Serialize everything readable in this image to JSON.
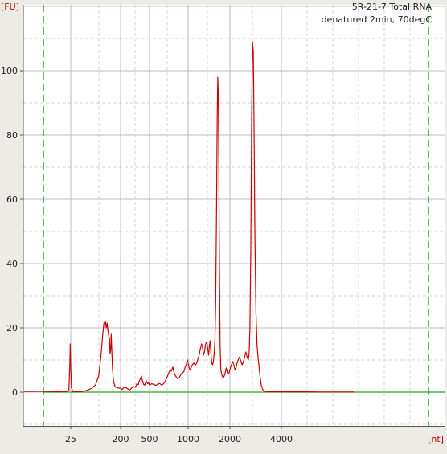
{
  "chart_data": {
    "type": "line",
    "title": "5R-21-7 Total RNA",
    "subtitle": "denatured 2min, 70degC",
    "xlabel": "[nt]",
    "ylabel": "[FU]",
    "x_tick_labels": [
      "25",
      "200",
      "500",
      "1000",
      "2000",
      "4000"
    ],
    "x_ticks_nt": [
      25,
      200,
      500,
      1000,
      2000,
      4000
    ],
    "y_ticks": [
      0,
      20,
      40,
      60,
      80,
      100
    ],
    "ylim": [
      -11,
      120
    ],
    "x_axis_note": "nonlinear sizing axis; curve x in nt, mapped through tick labels (25 nt marker; lower marker region left of 25)",
    "grid": true,
    "marker_lines": {
      "color": "#1f9e1f",
      "style": "dashed"
    },
    "baseline_color": "#2aa02a",
    "series": [
      {
        "color": "#cc0000",
        "points": [
          [
            3,
            0.2
          ],
          [
            8,
            0.3
          ],
          [
            14,
            0.1
          ],
          [
            18,
            0.2
          ],
          [
            21,
            0.2
          ],
          [
            23,
            0.5
          ],
          [
            24,
            9
          ],
          [
            24.5,
            15
          ],
          [
            25,
            8
          ],
          [
            25.8,
            1.5
          ],
          [
            27,
            0.2
          ],
          [
            32,
            0.1
          ],
          [
            40,
            0.2
          ],
          [
            50,
            0.6
          ],
          [
            60,
            1.2
          ],
          [
            70,
            2.2
          ],
          [
            80,
            5
          ],
          [
            88,
            11
          ],
          [
            95,
            18
          ],
          [
            100,
            21.5
          ],
          [
            106,
            22
          ],
          [
            110,
            20
          ],
          [
            114,
            21.5
          ],
          [
            118,
            19
          ],
          [
            122,
            17.5
          ],
          [
            126,
            16.5
          ],
          [
            129,
            12
          ],
          [
            132,
            13
          ],
          [
            135,
            18
          ],
          [
            138,
            14
          ],
          [
            142,
            8
          ],
          [
            146,
            5
          ],
          [
            150,
            3
          ],
          [
            160,
            1.6
          ],
          [
            175,
            1.4
          ],
          [
            190,
            1.2
          ],
          [
            200,
            1.3
          ],
          [
            210,
            0.8
          ],
          [
            225,
            1.6
          ],
          [
            240,
            1.3
          ],
          [
            255,
            0.9
          ],
          [
            270,
            0.7
          ],
          [
            285,
            1.3
          ],
          [
            300,
            1.8
          ],
          [
            318,
            1.5
          ],
          [
            335,
            2.6
          ],
          [
            350,
            2.3
          ],
          [
            362,
            3.5
          ],
          [
            375,
            4.2
          ],
          [
            388,
            5
          ],
          [
            400,
            3.5
          ],
          [
            415,
            2.4
          ],
          [
            430,
            2.2
          ],
          [
            450,
            3.5
          ],
          [
            470,
            2.6
          ],
          [
            485,
            3
          ],
          [
            500,
            2.2
          ],
          [
            520,
            2.6
          ],
          [
            540,
            2.4
          ],
          [
            560,
            2.1
          ],
          [
            580,
            2.5
          ],
          [
            600,
            2.7
          ],
          [
            620,
            2.2
          ],
          [
            640,
            2.5
          ],
          [
            660,
            3.2
          ],
          [
            680,
            4.4
          ],
          [
            700,
            5.5
          ],
          [
            720,
            6.8
          ],
          [
            740,
            6.5
          ],
          [
            760,
            7.8
          ],
          [
            780,
            5.8
          ],
          [
            800,
            5
          ],
          [
            825,
            4.2
          ],
          [
            850,
            4.4
          ],
          [
            870,
            5.2
          ],
          [
            890,
            5.8
          ],
          [
            910,
            6
          ],
          [
            930,
            6.6
          ],
          [
            950,
            7.8
          ],
          [
            970,
            8.7
          ],
          [
            990,
            10
          ],
          [
            1010,
            8.2
          ],
          [
            1030,
            6.8
          ],
          [
            1050,
            7.5
          ],
          [
            1075,
            8.6
          ],
          [
            1100,
            9
          ],
          [
            1125,
            8.4
          ],
          [
            1150,
            8.9
          ],
          [
            1175,
            10.2
          ],
          [
            1200,
            11.5
          ],
          [
            1225,
            13.5
          ],
          [
            1250,
            15
          ],
          [
            1270,
            14
          ],
          [
            1290,
            11.5
          ],
          [
            1310,
            12.5
          ],
          [
            1330,
            14.5
          ],
          [
            1350,
            15.5
          ],
          [
            1370,
            15
          ],
          [
            1390,
            13
          ],
          [
            1405,
            11.5
          ],
          [
            1420,
            14
          ],
          [
            1440,
            16
          ],
          [
            1460,
            12
          ],
          [
            1480,
            9
          ],
          [
            1500,
            8.5
          ],
          [
            1520,
            9.5
          ],
          [
            1540,
            12
          ],
          [
            1560,
            16
          ],
          [
            1580,
            28
          ],
          [
            1600,
            55
          ],
          [
            1620,
            85
          ],
          [
            1635,
            98
          ],
          [
            1650,
            92
          ],
          [
            1665,
            72
          ],
          [
            1680,
            40
          ],
          [
            1700,
            15
          ],
          [
            1720,
            7
          ],
          [
            1745,
            5.5
          ],
          [
            1770,
            4.8
          ],
          [
            1800,
            4.5
          ],
          [
            1840,
            5.5
          ],
          [
            1880,
            7.5
          ],
          [
            1920,
            6
          ],
          [
            1960,
            5.8
          ],
          [
            2000,
            7
          ],
          [
            2040,
            8.5
          ],
          [
            2080,
            9.5
          ],
          [
            2110,
            8.5
          ],
          [
            2140,
            7
          ],
          [
            2170,
            7.5
          ],
          [
            2200,
            9
          ],
          [
            2240,
            10.2
          ],
          [
            2280,
            11
          ],
          [
            2320,
            9.5
          ],
          [
            2360,
            8.5
          ],
          [
            2400,
            9.5
          ],
          [
            2440,
            11
          ],
          [
            2480,
            12.5
          ],
          [
            2520,
            11
          ],
          [
            2560,
            10
          ],
          [
            2590,
            12
          ],
          [
            2620,
            20
          ],
          [
            2650,
            45
          ],
          [
            2680,
            85
          ],
          [
            2710,
            109
          ],
          [
            2740,
            106
          ],
          [
            2770,
            80
          ],
          [
            2800,
            48
          ],
          [
            2840,
            25
          ],
          [
            2880,
            15
          ],
          [
            2920,
            11
          ],
          [
            2960,
            8
          ],
          [
            3000,
            5
          ],
          [
            3050,
            2.2
          ],
          [
            3100,
            1
          ],
          [
            3150,
            0.4
          ],
          [
            3200,
            0.2
          ],
          [
            3300,
            0.1
          ],
          [
            3450,
            0.15
          ],
          [
            3600,
            0.1
          ],
          [
            3800,
            0.15
          ],
          [
            4000,
            0.1
          ],
          [
            4200,
            0.1
          ],
          [
            4500,
            0.1
          ],
          [
            5000,
            0.05
          ],
          [
            6000,
            0.05
          ]
        ]
      }
    ]
  }
}
